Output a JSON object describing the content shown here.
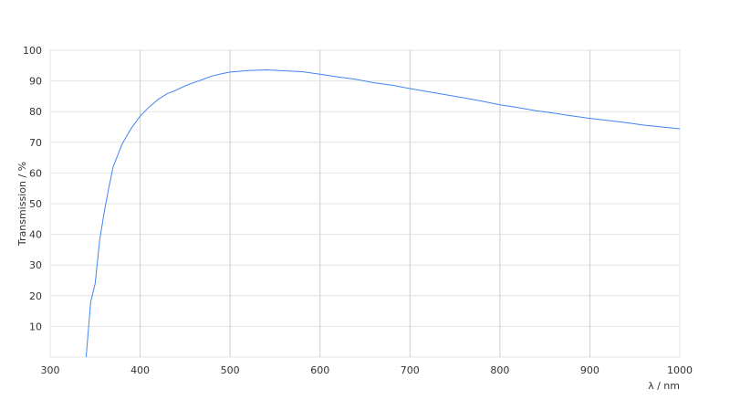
{
  "chart_data": {
    "type": "line",
    "title": "",
    "xlabel": "λ / nm",
    "ylabel": "Transmission / %",
    "xlim": [
      300,
      1000
    ],
    "ylim": [
      0,
      100
    ],
    "xticks": [
      300,
      400,
      500,
      600,
      700,
      800,
      900,
      1000
    ],
    "yticks": [
      10,
      20,
      30,
      40,
      50,
      60,
      70,
      80,
      90,
      100
    ],
    "grid": true,
    "line_color": "#4285f4",
    "series": [
      {
        "x": [
          340,
          345,
          350,
          355,
          360,
          365,
          370,
          380,
          390,
          400,
          410,
          420,
          430,
          440,
          450,
          460,
          470,
          480,
          490,
          500,
          520,
          540,
          560,
          580,
          600,
          620,
          640,
          660,
          680,
          700,
          720,
          740,
          760,
          780,
          800,
          820,
          840,
          860,
          880,
          900,
          920,
          940,
          960,
          980,
          1000
        ],
        "y": [
          0,
          18,
          24,
          38,
          47,
          55,
          62,
          69.5,
          74.5,
          78.5,
          81.5,
          84,
          85.8,
          87,
          88.4,
          89.5,
          90.5,
          91.6,
          92.3,
          92.9,
          93.4,
          93.6,
          93.3,
          93,
          92.2,
          91.3,
          90.5,
          89.4,
          88.6,
          87.5,
          86.5,
          85.5,
          84.5,
          83.4,
          82.2,
          81.3,
          80.3,
          79.5,
          78.6,
          77.8,
          77.1,
          76.4,
          75.6,
          75,
          74.4
        ]
      }
    ]
  }
}
